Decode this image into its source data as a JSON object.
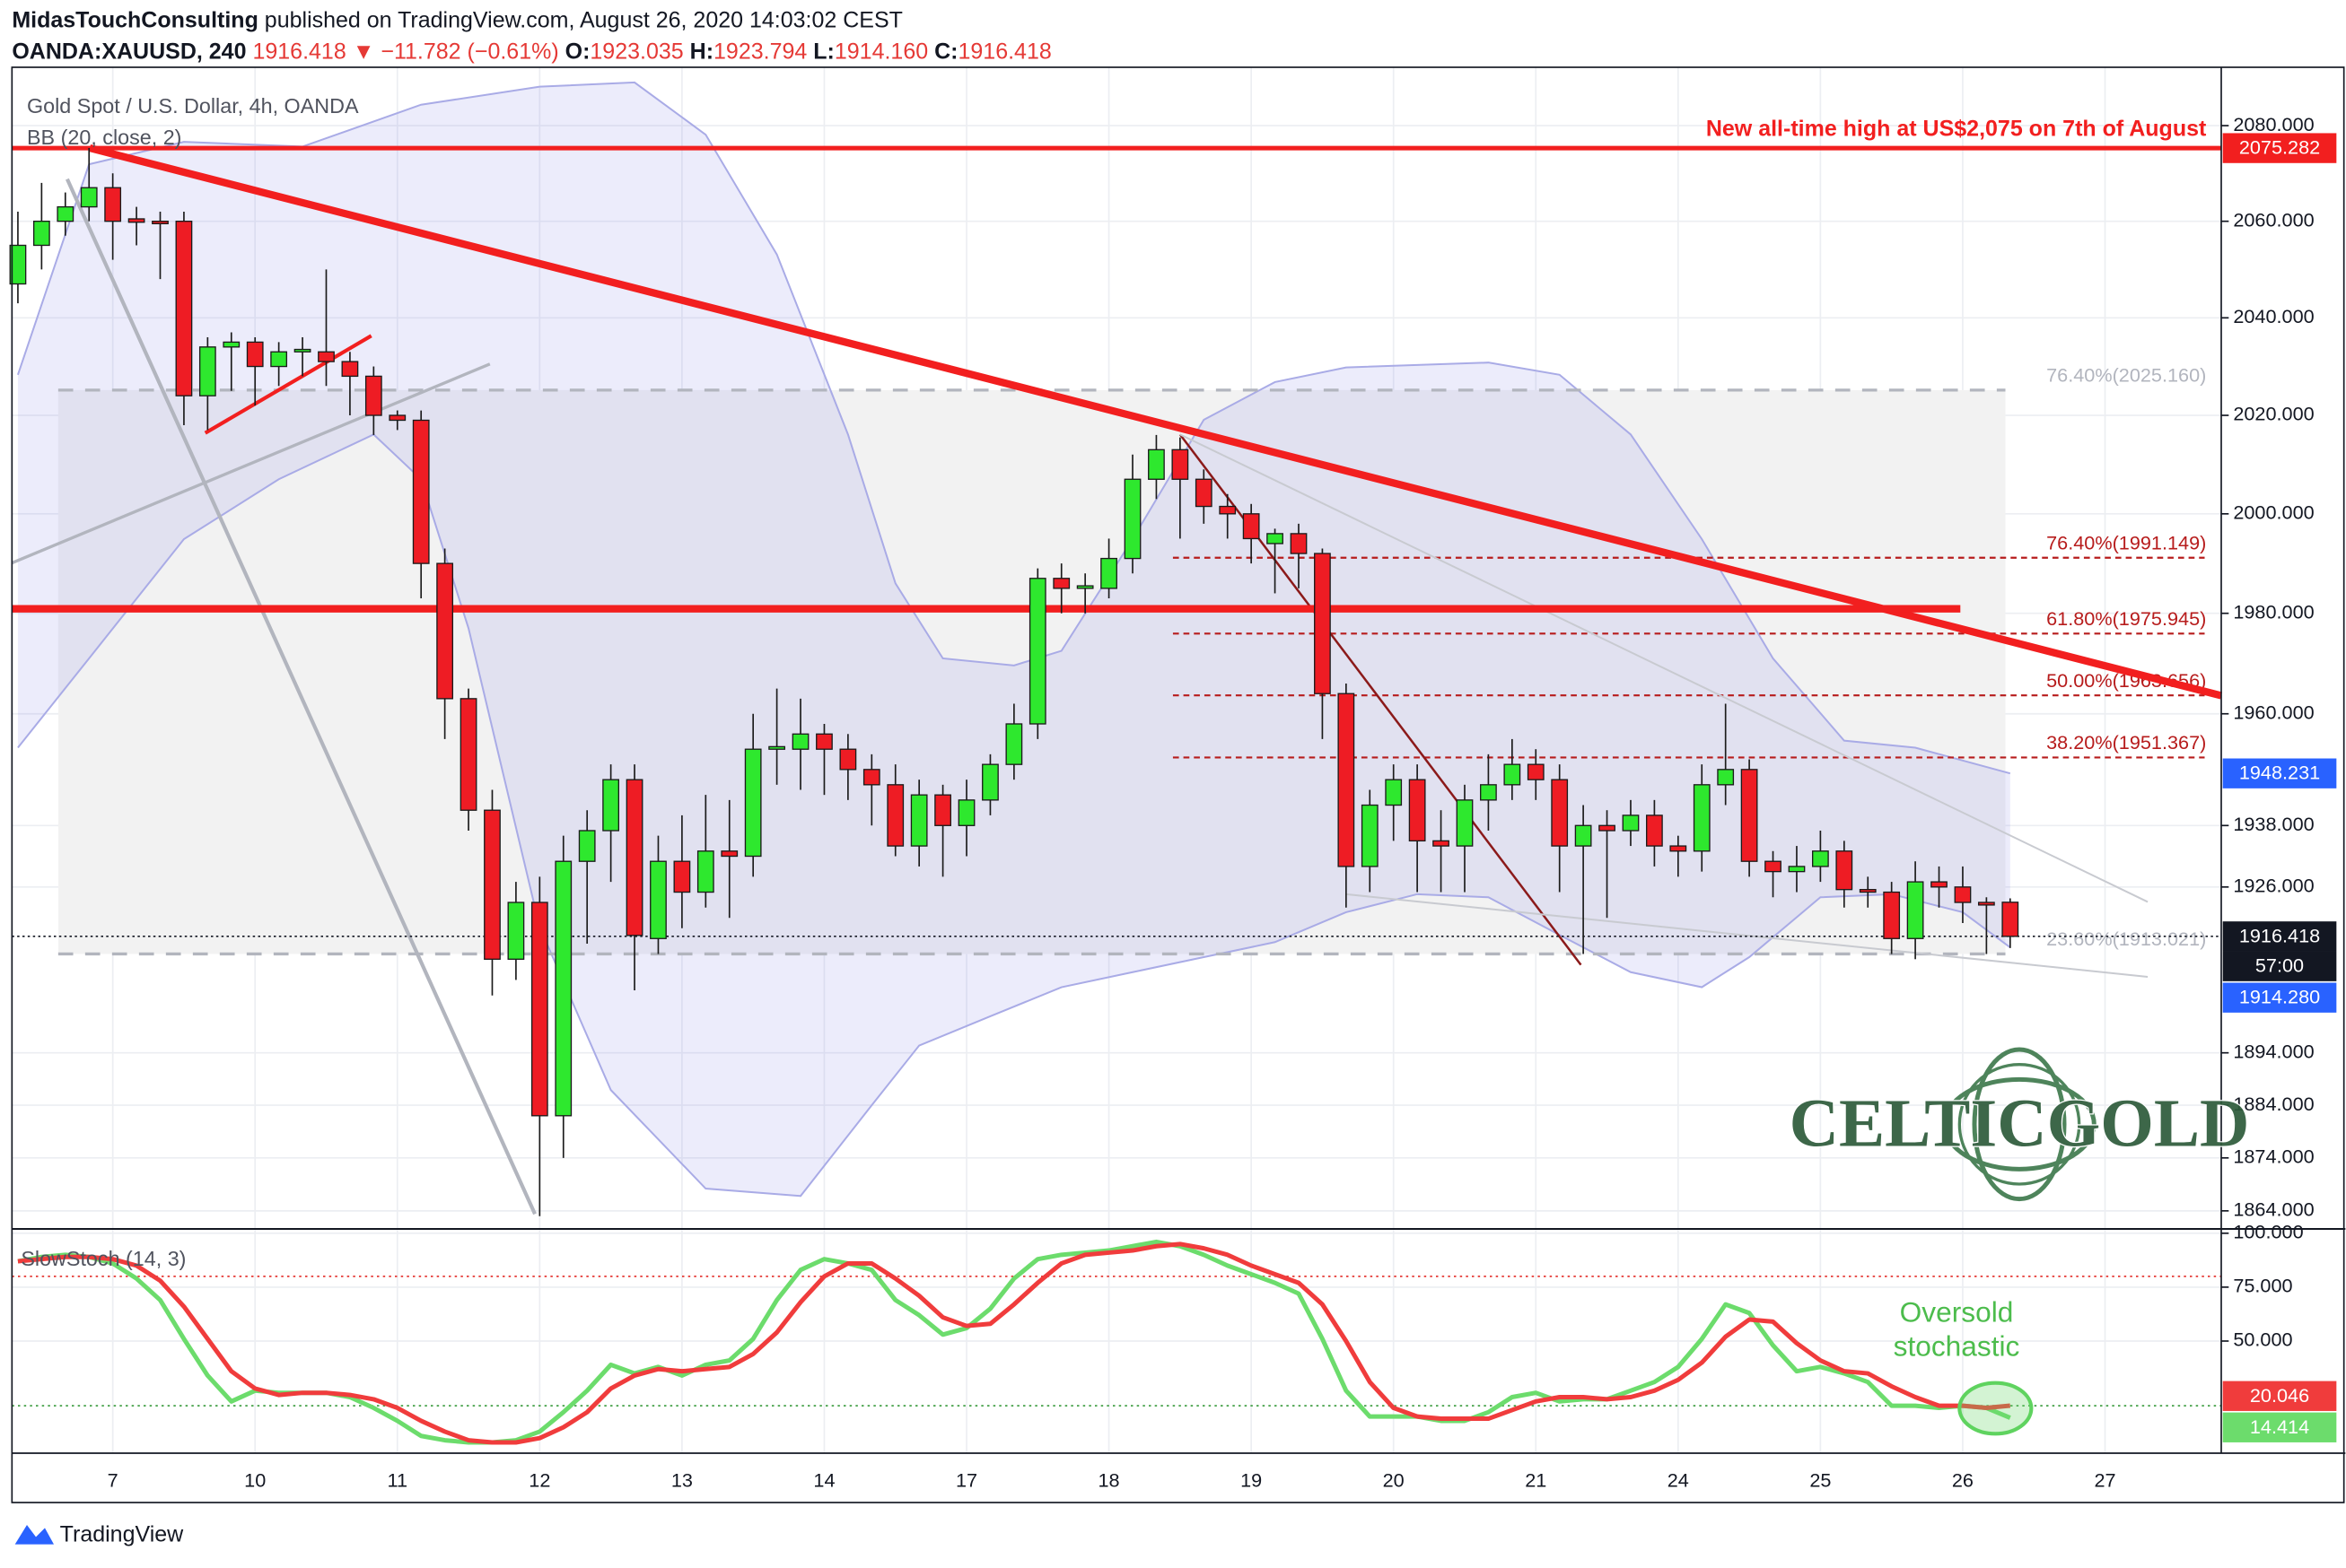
{
  "header": {
    "author": "MidasTouchConsulting",
    "published": "published on TradingView.com, August 26, 2020 14:03:02 CEST",
    "symbol": "OANDA:XAUUSD, 240",
    "last": "1916.418",
    "change": "▼ −11.782 (−0.61%)",
    "ohlc": [
      [
        "O:",
        "1923.035"
      ],
      [
        "H:",
        "1923.794"
      ],
      [
        "L:",
        "1914.160"
      ],
      [
        "C:",
        "1916.418"
      ]
    ]
  },
  "chart_data": {
    "type": "candlestick",
    "title": "Gold Spot / U.S. Dollar, 4h, OANDA",
    "log_scale": true,
    "grid": true,
    "up_color": "#2ee82e",
    "down_color": "#ee1c24",
    "xlim": [
      -0.25,
      92.9
    ],
    "xticks": [
      {
        "value": 4,
        "label": "7"
      },
      {
        "value": 10,
        "label": "10"
      },
      {
        "value": 16,
        "label": "11"
      },
      {
        "value": 22,
        "label": "12"
      },
      {
        "value": 28,
        "label": "13"
      },
      {
        "value": 34,
        "label": "14"
      },
      {
        "value": 40,
        "label": "17"
      },
      {
        "value": 46,
        "label": "18"
      },
      {
        "value": 52,
        "label": "19"
      },
      {
        "value": 58,
        "label": "20"
      },
      {
        "value": 64,
        "label": "21"
      },
      {
        "value": 70,
        "label": "24"
      },
      {
        "value": 76,
        "label": "25"
      },
      {
        "value": 82,
        "label": "26"
      },
      {
        "value": 88,
        "label": "27"
      }
    ],
    "ylim": [
      1860.6,
      2092.3
    ],
    "yticks": [
      {
        "value": 2080,
        "label": "2080.000"
      },
      {
        "value": 2060,
        "label": "2060.000"
      },
      {
        "value": 2040,
        "label": "2040.000"
      },
      {
        "value": 2020,
        "label": "2020.000"
      },
      {
        "value": 2000,
        "label": "2000.000"
      },
      {
        "value": 1980,
        "label": "1980.000"
      },
      {
        "value": 1960,
        "label": "1960.000"
      },
      {
        "value": 1938,
        "label": "1938.000"
      },
      {
        "value": 1926,
        "label": "1926.000"
      },
      {
        "value": 1894,
        "label": "1894.000"
      },
      {
        "value": 1884,
        "label": "1884.000"
      },
      {
        "value": 1874,
        "label": "1874.000"
      },
      {
        "value": 1864,
        "label": "1864.000"
      }
    ],
    "ohlc": [
      [
        2047,
        2062,
        2043,
        2055
      ],
      [
        2055,
        2068,
        2050,
        2060
      ],
      [
        2060,
        2066,
        2057,
        2063
      ],
      [
        2063,
        2075.3,
        2060,
        2067
      ],
      [
        2067,
        2070,
        2052,
        2060
      ],
      [
        2060.5,
        2063,
        2055,
        2059.8
      ],
      [
        2060,
        2062,
        2048,
        2059.5
      ],
      [
        2060,
        2062,
        2018,
        2024
      ],
      [
        2024,
        2036,
        2017,
        2034
      ],
      [
        2034,
        2037,
        2025,
        2035
      ],
      [
        2035,
        2036,
        2022,
        2030
      ],
      [
        2030,
        2035,
        2026,
        2033
      ],
      [
        2033,
        2036,
        2028,
        2033.5
      ],
      [
        2033,
        2050,
        2026,
        2031
      ],
      [
        2031,
        2033,
        2020,
        2028
      ],
      [
        2028,
        2030,
        2016,
        2020
      ],
      [
        2020,
        2021,
        2017,
        2019
      ],
      [
        2019,
        2021,
        1983,
        1990
      ],
      [
        1990,
        1993,
        1955,
        1963
      ],
      [
        1963,
        1965,
        1937,
        1941
      ],
      [
        1941,
        1945,
        1905,
        1912
      ],
      [
        1912,
        1927,
        1908,
        1923
      ],
      [
        1923,
        1928,
        1863,
        1882
      ],
      [
        1882,
        1936,
        1874,
        1931
      ],
      [
        1931,
        1941,
        1915,
        1937
      ],
      [
        1937,
        1950,
        1927,
        1947
      ],
      [
        1947,
        1950,
        1906,
        1916.6
      ],
      [
        1916,
        1936,
        1913,
        1931
      ],
      [
        1931,
        1940,
        1918,
        1925
      ],
      [
        1925,
        1944,
        1922,
        1933
      ],
      [
        1933,
        1943,
        1920,
        1932
      ],
      [
        1932,
        1960,
        1928,
        1953
      ],
      [
        1953,
        1965,
        1946,
        1953.5
      ],
      [
        1953,
        1963,
        1945,
        1956
      ],
      [
        1956,
        1958,
        1944,
        1953
      ],
      [
        1953,
        1956,
        1943,
        1949
      ],
      [
        1949,
        1952,
        1938,
        1946
      ],
      [
        1946,
        1950,
        1932,
        1934
      ],
      [
        1934,
        1947,
        1930,
        1944
      ],
      [
        1944,
        1946,
        1928,
        1938
      ],
      [
        1938,
        1947,
        1932,
        1943
      ],
      [
        1943,
        1952,
        1940,
        1950
      ],
      [
        1950,
        1962,
        1947,
        1958
      ],
      [
        1958,
        1989,
        1955,
        1987
      ],
      [
        1987,
        1990,
        1980,
        1985
      ],
      [
        1985,
        1988,
        1980,
        1985.5
      ],
      [
        1985,
        1995,
        1983,
        1991
      ],
      [
        1991,
        2012,
        1988,
        2007
      ],
      [
        2007,
        2016,
        2003,
        2013
      ],
      [
        2013,
        2015.5,
        1995,
        2007
      ],
      [
        2007,
        2009,
        1998,
        2001.5
      ],
      [
        2001.5,
        2004,
        1995,
        2000
      ],
      [
        2000,
        2002,
        1990,
        1995
      ],
      [
        1994,
        1997,
        1984,
        1996
      ],
      [
        1996,
        1998,
        1985,
        1992
      ],
      [
        1992,
        1993,
        1955,
        1964
      ],
      [
        1964,
        1966,
        1922,
        1930
      ],
      [
        1930,
        1945,
        1925,
        1942
      ],
      [
        1942,
        1950,
        1935,
        1947
      ],
      [
        1947,
        1950,
        1925,
        1935
      ],
      [
        1935,
        1941,
        1925,
        1934
      ],
      [
        1934,
        1946,
        1925,
        1943
      ],
      [
        1943,
        1952,
        1937,
        1946
      ],
      [
        1946,
        1955,
        1943,
        1950
      ],
      [
        1950,
        1953,
        1943,
        1947
      ],
      [
        1947,
        1950,
        1925,
        1934
      ],
      [
        1934,
        1942,
        1913,
        1938
      ],
      [
        1938,
        1941,
        1920,
        1937
      ],
      [
        1937,
        1943,
        1934,
        1940
      ],
      [
        1940,
        1943,
        1930,
        1934
      ],
      [
        1934,
        1936,
        1928,
        1933
      ],
      [
        1933,
        1950,
        1929,
        1946
      ],
      [
        1946,
        1962,
        1942,
        1949
      ],
      [
        1949,
        1951,
        1928,
        1931
      ],
      [
        1931,
        1933,
        1924,
        1929
      ],
      [
        1929,
        1934,
        1925,
        1930
      ],
      [
        1930,
        1937,
        1927,
        1933
      ],
      [
        1933,
        1935,
        1922,
        1925.5
      ],
      [
        1925.5,
        1928,
        1922,
        1925
      ],
      [
        1925,
        1927,
        1913,
        1916
      ],
      [
        1916,
        1931,
        1912,
        1927
      ],
      [
        1927,
        1930,
        1922,
        1926
      ],
      [
        1926,
        1930,
        1919,
        1923
      ],
      [
        1923,
        1924,
        1913,
        1922.5
      ],
      [
        1923.035,
        1923.794,
        1914.16,
        1916.418
      ]
    ],
    "countdown": "57:00",
    "bb": {
      "name": "BB (20, close, 2)",
      "color": "#a9abe6",
      "fill": "rgba(126,130,230,0.15)",
      "upper": {
        "x": [
          0,
          3,
          7,
          12,
          17,
          22,
          26,
          29,
          32,
          35,
          37,
          39,
          42,
          44,
          47,
          50,
          53,
          56,
          62,
          65,
          68,
          71,
          74,
          77,
          80,
          84
        ],
        "values": [
          2028.3,
          2071.9,
          2076.6,
          2075.6,
          2084.4,
          2088.2,
          2089.1,
          2078.1,
          2053.1,
          2016.1,
          1986.0,
          1971.0,
          1969.6,
          1972.5,
          1994.9,
          2019.1,
          2026.8,
          2029.8,
          2030.8,
          2028.3,
          2016.1,
          1994.9,
          1971.0,
          1954.7,
          1953.3,
          1948.231
        ]
      },
      "lower": {
        "x": [
          0,
          3,
          7,
          11,
          15,
          17,
          19,
          22,
          25,
          29,
          33,
          36,
          38,
          41,
          44,
          47,
          50,
          53,
          56,
          59,
          62,
          65,
          68,
          71,
          73,
          76,
          79,
          82,
          84
        ],
        "values": [
          1953.3,
          1971.0,
          1994.9,
          2007.0,
          2016.1,
          2007.0,
          1977.0,
          1918.2,
          1886.9,
          1868.2,
          1866.8,
          1884,
          1895.4,
          1901.0,
          1906.6,
          1909.5,
          1912.4,
          1915.3,
          1921.1,
          1924.6,
          1924.0,
          1916.7,
          1909.5,
          1906.6,
          1912.4,
          1924.0,
          1924.6,
          1921.1,
          1914.28
        ],
        "tag_label": "1914.280"
      }
    },
    "hlines": [
      {
        "value": 2075.282,
        "color": "#f21f1f",
        "width": 3,
        "x": [
          -0.25,
          92.9
        ],
        "annotation": "New all-time high at US$2,075 on 7th of August"
      },
      {
        "value": 1980.9,
        "color": "#f21f1f",
        "width": 5,
        "x": [
          -0.25,
          81.9
        ]
      }
    ],
    "trendlines": [
      {
        "color": "#f21f1f",
        "width": 5,
        "points": [
          [
            3.03,
            2075.3
          ],
          [
            92.9,
            1963.6
          ]
        ]
      },
      {
        "color": "#f21f1f",
        "width": 2.5,
        "points": [
          [
            7.9,
            2016.4
          ],
          [
            14.9,
            2036.3
          ]
        ]
      },
      {
        "color": "#b2b5be",
        "width": 2,
        "points": [
          [
            -0.25,
            1990.1
          ],
          [
            19.9,
            2030.5
          ]
        ]
      },
      {
        "color": "#b2b5be",
        "width": 2.5,
        "points": [
          [
            2.08,
            2068.8
          ],
          [
            21.8,
            1863.4
          ]
        ]
      },
      {
        "color": "#8b1a1a",
        "width": 1.5,
        "points": [
          [
            49,
            2016.1
          ],
          [
            65.9,
            1910.9
          ]
        ]
      },
      {
        "color": "#c8cad0",
        "width": 1.2,
        "points": [
          [
            49,
            2016.1
          ],
          [
            89.8,
            1923.1
          ]
        ]
      },
      {
        "color": "#c8cad0",
        "width": 1.2,
        "points": [
          [
            56,
            1924.6
          ],
          [
            89.8,
            1908.6
          ]
        ]
      }
    ],
    "fib_outer": {
      "x": [
        1.7,
        83.8
      ],
      "color": "#b2b5be",
      "fill": "#f2f2f2",
      "levels": [
        {
          "value": 2025.16,
          "label": "76.40%(2025.160)"
        },
        {
          "value": 1913.021,
          "label": "23.60%(1913.021)"
        }
      ]
    },
    "fib_inner": {
      "x": [
        48.7,
        92.2
      ],
      "color": "#b71c1c",
      "levels": [
        {
          "value": 1991.149,
          "label": "76.40%(1991.149)"
        },
        {
          "value": 1975.945,
          "label": "61.80%(1975.945)"
        },
        {
          "value": 1963.656,
          "label": "50.00%(1963.656)"
        },
        {
          "value": 1951.367,
          "label": "38.20%(1951.367)"
        }
      ]
    },
    "stoch": {
      "name": "SlowStoch (14, 3)",
      "ylim": [
        -2,
        102
      ],
      "yticks": [
        {
          "value": 100,
          "label": "100.000"
        },
        {
          "value": 75,
          "label": "75.000"
        },
        {
          "value": 50,
          "label": "50.000"
        }
      ],
      "bands": [
        {
          "value": 80,
          "color": "#e53935"
        },
        {
          "value": 20,
          "color": "#43a047"
        }
      ],
      "series": [
        {
          "color": "#6cdc6c",
          "values": [
            87,
            89,
            90,
            89,
            86,
            79,
            69,
            51,
            34,
            22,
            27,
            26,
            26,
            26,
            24,
            19,
            13,
            6,
            4,
            3,
            3,
            4,
            8,
            17,
            27,
            39,
            35,
            38,
            34,
            39,
            41,
            51,
            69,
            83,
            88,
            86,
            83,
            69,
            62,
            53,
            56,
            65,
            79,
            88,
            90,
            91,
            92,
            94,
            96,
            94,
            90,
            85,
            81,
            77,
            72,
            51,
            27,
            15,
            15,
            15,
            13,
            13,
            17,
            24,
            26,
            22,
            23,
            23,
            27,
            31,
            38,
            51,
            67,
            63,
            48,
            36,
            38,
            35,
            31,
            20,
            20,
            19,
            20,
            19,
            14.414
          ]
        },
        {
          "color": "#f03c3c",
          "values": [
            87,
            88,
            89,
            89,
            88,
            85,
            78,
            66,
            51,
            36,
            28,
            25,
            26,
            26,
            25,
            23,
            19,
            13,
            8,
            4,
            3,
            3,
            5,
            10,
            17,
            28,
            34,
            37,
            36,
            37,
            38,
            44,
            54,
            68,
            80,
            86,
            86,
            79,
            71,
            61,
            57,
            58,
            67,
            77,
            86,
            90,
            91,
            92,
            94,
            95,
            93,
            90,
            85,
            81,
            77,
            67,
            50,
            31,
            19,
            15,
            14,
            14,
            14,
            18,
            22,
            24,
            24,
            23,
            24,
            27,
            32,
            40,
            52,
            60,
            59,
            49,
            41,
            36,
            35,
            29,
            24,
            20,
            20,
            19,
            20.046
          ]
        }
      ],
      "annotation": [
        "Oversold",
        "stochastic"
      ]
    },
    "watermark": "CELTICGOLD"
  },
  "footer": "TradingView"
}
